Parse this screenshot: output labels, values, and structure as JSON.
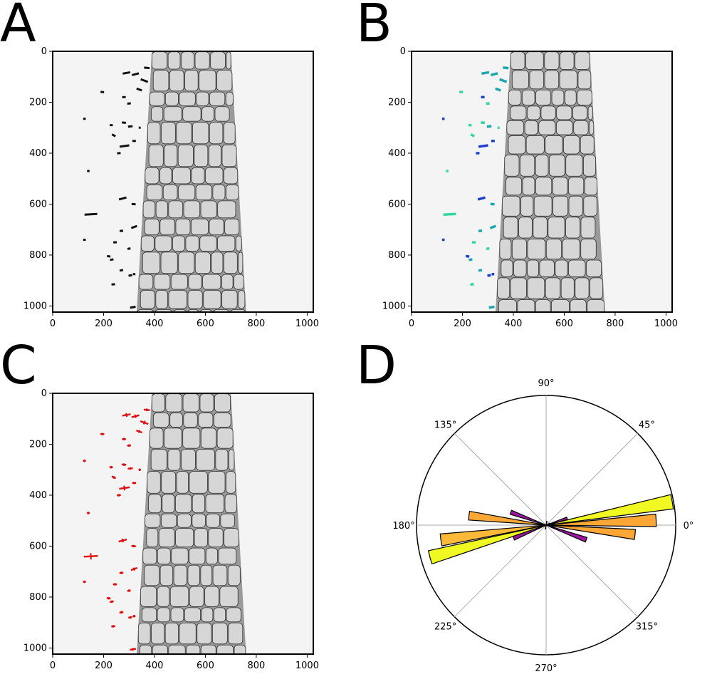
{
  "panels": {
    "A": {
      "letter": "A"
    },
    "B": {
      "letter": "B"
    },
    "C": {
      "letter": "C"
    },
    "D": {
      "letter": "D"
    }
  },
  "colors": {
    "image_background": "#f4f4f4",
    "cell_fill": "#d6d6d6",
    "cell_edge": "#333333",
    "junction_dark": "#111111",
    "segment_blue": "#1f3fd0",
    "segment_teal": "#1aa6b0",
    "segment_green": "#2fd8a0",
    "fit_line": "#e01010",
    "rose_yellow": "#f0f921",
    "rose_orange": "#fca636",
    "rose_lightorange": "#feb93a",
    "rose_purple": "#9c179e"
  },
  "chart_data": [
    {
      "panel": "A",
      "type": "image",
      "xlim": [
        0,
        1024
      ],
      "ylim": [
        1024,
        0
      ],
      "x_ticks": [
        0,
        200,
        400,
        600,
        800,
        1000
      ],
      "y_ticks": [
        0,
        200,
        400,
        600,
        800,
        1000
      ],
      "x_tick_labels": [
        "0",
        "200",
        "400",
        "600",
        "800",
        "1000"
      ],
      "y_tick_labels": [
        "0",
        "200",
        "400",
        "600",
        "800",
        "1000"
      ]
    },
    {
      "panel": "B",
      "type": "image",
      "xlim": [
        0,
        1024
      ],
      "ylim": [
        1024,
        0
      ],
      "x_ticks": [
        0,
        200,
        400,
        600,
        800,
        1000
      ],
      "y_ticks": [
        0,
        200,
        400,
        600,
        800,
        1000
      ],
      "x_tick_labels": [
        "0",
        "200",
        "400",
        "600",
        "800",
        "1000"
      ],
      "y_tick_labels": [
        "0",
        "200",
        "400",
        "600",
        "800",
        "1000"
      ]
    },
    {
      "panel": "C",
      "type": "image",
      "xlim": [
        0,
        1024
      ],
      "ylim": [
        1024,
        0
      ],
      "x_ticks": [
        0,
        200,
        400,
        600,
        800,
        1000
      ],
      "y_ticks": [
        0,
        200,
        400,
        600,
        800,
        1000
      ],
      "x_tick_labels": [
        "0",
        "200",
        "400",
        "600",
        "800",
        "1000"
      ],
      "y_tick_labels": [
        "0",
        "200",
        "400",
        "600",
        "800",
        "1000"
      ]
    },
    {
      "panel": "D",
      "type": "polar-bar",
      "angle_labels": [
        "0°",
        "45°",
        "90°",
        "135°",
        "180°",
        "225°",
        "270°",
        "315°"
      ],
      "angle_ticks_deg": [
        0,
        45,
        90,
        135,
        180,
        225,
        270,
        315
      ],
      "rmax": 1.0,
      "bars": [
        {
          "center_deg": 2.5,
          "r": 0.85,
          "color": "#fca636"
        },
        {
          "center_deg": 10.5,
          "r": 0.99,
          "color": "#f0f921"
        },
        {
          "center_deg": 18,
          "r": 0.17,
          "color": "#9c179e"
        },
        {
          "center_deg": 26,
          "r": 0.03,
          "color": "#9c179e"
        },
        {
          "center_deg": 80,
          "r": 0.03,
          "color": "#9c179e"
        },
        {
          "center_deg": 173,
          "r": 0.6,
          "color": "#fca636"
        },
        {
          "center_deg": 160,
          "r": 0.29,
          "color": "#9c179e"
        },
        {
          "center_deg": 188,
          "r": 0.82,
          "color": "#feb93a"
        },
        {
          "center_deg": 195.5,
          "r": 0.93,
          "color": "#f0f921"
        },
        {
          "center_deg": 202,
          "r": 0.27,
          "color": "#9c179e"
        },
        {
          "center_deg": 340,
          "r": 0.33,
          "color": "#9c179e"
        },
        {
          "center_deg": 354,
          "r": 0.69,
          "color": "#fca636"
        },
        {
          "center_deg": 260,
          "r": 0.03,
          "color": "#9c179e"
        }
      ],
      "bar_width_deg": 6.5
    }
  ],
  "junctions": [
    {
      "x": 290,
      "y": 85,
      "len": 30,
      "ang": -10,
      "c": "#1aa6b0"
    },
    {
      "x": 325,
      "y": 90,
      "len": 28,
      "ang": -15,
      "c": "#1aa6b0"
    },
    {
      "x": 370,
      "y": 65,
      "len": 22,
      "ang": 5,
      "c": "#1aa6b0"
    },
    {
      "x": 360,
      "y": 115,
      "len": 30,
      "ang": 20,
      "c": "#1aa6b0"
    },
    {
      "x": 340,
      "y": 150,
      "len": 22,
      "ang": 20,
      "c": "#1aa6b0"
    },
    {
      "x": 195,
      "y": 160,
      "len": 14,
      "ang": 5,
      "c": "#2fd8a0"
    },
    {
      "x": 280,
      "y": 180,
      "len": 14,
      "ang": 0,
      "c": "#1f3fd0"
    },
    {
      "x": 300,
      "y": 205,
      "len": 14,
      "ang": -5,
      "c": "#2fd8a0"
    },
    {
      "x": 280,
      "y": 280,
      "len": 16,
      "ang": 5,
      "c": "#2fd8a0"
    },
    {
      "x": 305,
      "y": 295,
      "len": 18,
      "ang": -5,
      "c": "#1aa6b0"
    },
    {
      "x": 240,
      "y": 330,
      "len": 16,
      "ang": 30,
      "c": "#2fd8a0"
    },
    {
      "x": 282,
      "y": 372,
      "len": 38,
      "ang": -8,
      "c": "#1f3fd0"
    },
    {
      "x": 320,
      "y": 352,
      "len": 14,
      "ang": 0,
      "c": "#1f3fd0"
    },
    {
      "x": 260,
      "y": 400,
      "len": 14,
      "ang": -5,
      "c": "#1f3fd0"
    },
    {
      "x": 230,
      "y": 290,
      "len": 12,
      "ang": 0,
      "c": "#2fd8a0"
    },
    {
      "x": 125,
      "y": 265,
      "len": 10,
      "ang": 0,
      "c": "#1f3fd0"
    },
    {
      "x": 140,
      "y": 470,
      "len": 10,
      "ang": 0,
      "c": "#2fd8a0"
    },
    {
      "x": 275,
      "y": 578,
      "len": 30,
      "ang": -15,
      "c": "#1f3fd0"
    },
    {
      "x": 318,
      "y": 600,
      "len": 16,
      "ang": 5,
      "c": "#1aa6b0"
    },
    {
      "x": 150,
      "y": 640,
      "len": 50,
      "ang": -3,
      "c": "#2fd8a0"
    },
    {
      "x": 320,
      "y": 690,
      "len": 24,
      "ang": -20,
      "c": "#1aa6b0"
    },
    {
      "x": 270,
      "y": 705,
      "len": 14,
      "ang": -5,
      "c": "#1aa6b0"
    },
    {
      "x": 245,
      "y": 750,
      "len": 14,
      "ang": 0,
      "c": "#2fd8a0"
    },
    {
      "x": 125,
      "y": 740,
      "len": 10,
      "ang": 0,
      "c": "#1f3fd0"
    },
    {
      "x": 300,
      "y": 775,
      "len": 12,
      "ang": -10,
      "c": "#2fd8a0"
    },
    {
      "x": 220,
      "y": 805,
      "len": 14,
      "ang": 10,
      "c": "#1f3fd0"
    },
    {
      "x": 232,
      "y": 818,
      "len": 14,
      "ang": -10,
      "c": "#1aa6b0"
    },
    {
      "x": 270,
      "y": 860,
      "len": 14,
      "ang": -10,
      "c": "#1aa6b0"
    },
    {
      "x": 238,
      "y": 915,
      "len": 14,
      "ang": -5,
      "c": "#2fd8a0"
    },
    {
      "x": 305,
      "y": 880,
      "len": 14,
      "ang": -10,
      "c": "#1f3fd0"
    },
    {
      "x": 320,
      "y": 875,
      "len": 10,
      "ang": 0,
      "c": "#1f3fd0"
    },
    {
      "x": 315,
      "y": 1005,
      "len": 22,
      "ang": -10,
      "c": "#1aa6b0"
    },
    {
      "x": 342,
      "y": 300,
      "len": 8,
      "ang": 0,
      "c": "#2fd8a0"
    }
  ]
}
